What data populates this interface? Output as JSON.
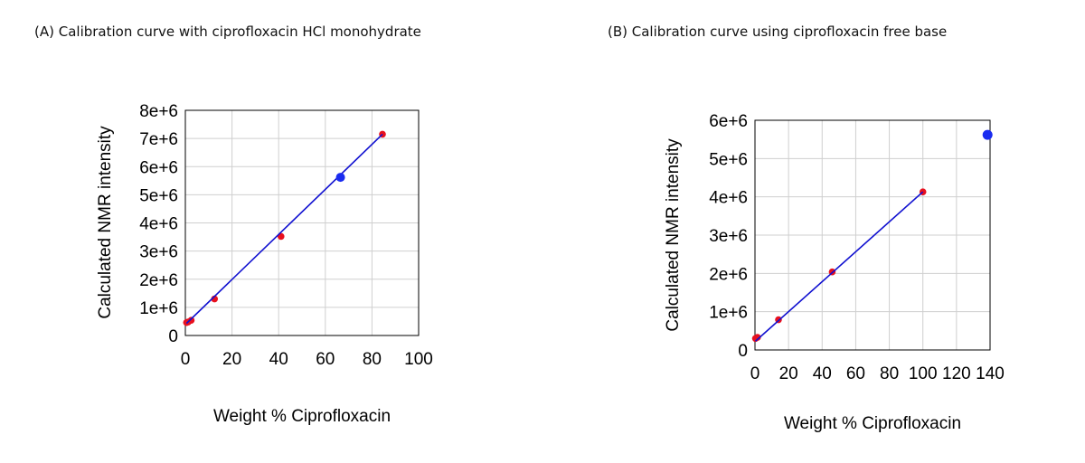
{
  "chart_data": [
    {
      "type": "scatter",
      "title": "(A)  Calibration curve with ciprofloxacin HCl monohydrate",
      "xlabel": "Weight % Ciprofloxacin",
      "ylabel": "Calculated NMR intensity",
      "xlim": [
        0,
        100
      ],
      "ylim": [
        0,
        8000000
      ],
      "xticks": [
        "0",
        "20",
        "40",
        "60",
        "80",
        "100"
      ],
      "yticks": [
        "0",
        "1e+6",
        "2e+6",
        "3e+6",
        "4e+6",
        "5e+6",
        "6e+6",
        "7e+6",
        "8e+6"
      ],
      "grid": true,
      "series": [
        {
          "role": "calibration",
          "color": "#e8101e",
          "points": [
            [
              0.5,
              460000
            ],
            [
              1.2,
              480000
            ],
            [
              2.5,
              540000
            ],
            [
              12.5,
              1300000
            ],
            [
              41,
              3520000
            ],
            [
              84.5,
              7150000
            ]
          ]
        },
        {
          "role": "fit",
          "color": "#1010d0",
          "line": [
            [
              0.5,
              430000
            ],
            [
              84.5,
              7150000
            ]
          ]
        },
        {
          "role": "unknown",
          "color": "#1a2cf0",
          "points": [
            [
              66.5,
              5620000
            ]
          ]
        }
      ]
    },
    {
      "type": "scatter",
      "title": "(B) Calibration curve using ciprofloxacin free base",
      "xlabel": "Weight % Ciprofloxacin",
      "ylabel": "Calculated NMR intensity",
      "xlim": [
        0,
        140
      ],
      "ylim": [
        0,
        6000000
      ],
      "xticks": [
        "0",
        "20",
        "40",
        "60",
        "80",
        "100",
        "120",
        "140"
      ],
      "yticks": [
        "0",
        "1e+6",
        "2e+6",
        "3e+6",
        "4e+6",
        "5e+6",
        "6e+6"
      ],
      "grid": true,
      "series": [
        {
          "role": "calibration",
          "color": "#e8101e",
          "points": [
            [
              0.3,
              300000
            ],
            [
              1.5,
              330000
            ],
            [
              14,
              790000
            ],
            [
              46,
              2040000
            ],
            [
              100,
              4130000
            ]
          ]
        },
        {
          "role": "fit",
          "color": "#1010d0",
          "line": [
            [
              0.3,
              230000
            ],
            [
              100,
              4130000
            ]
          ]
        },
        {
          "role": "unknown",
          "color": "#1a2cf0",
          "points": [
            [
              138.5,
              5620000
            ]
          ]
        }
      ]
    }
  ]
}
